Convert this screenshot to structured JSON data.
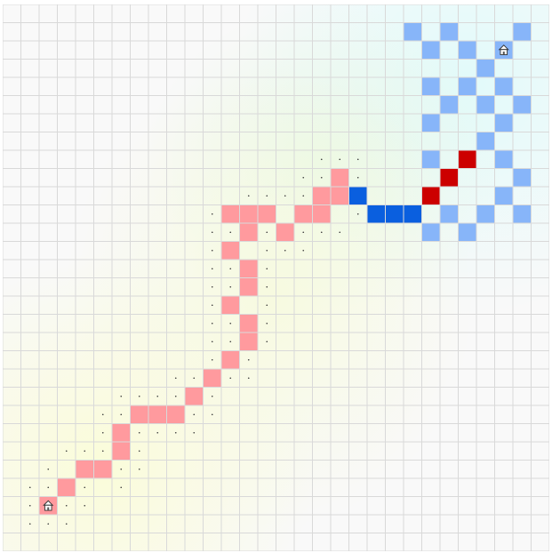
{
  "board": {
    "cols": 30,
    "rows": 30,
    "colors": {
      "grid_line": "#d9d9d9",
      "player_trail": "#ff9a9e",
      "player_head": "#cc0000",
      "enemy_trail": "#87b5f9",
      "enemy_head": "#0a5fdf",
      "marker_dot": "#333333"
    },
    "icons": {
      "home": "home-icon"
    },
    "homes": [
      {
        "owner": "player",
        "col": 2,
        "row": 27
      },
      {
        "owner": "enemy",
        "col": 27,
        "row": 2
      }
    ],
    "player_trail": [
      [
        3,
        26
      ],
      [
        4,
        25
      ],
      [
        5,
        25
      ],
      [
        6,
        24
      ],
      [
        6,
        23
      ],
      [
        7,
        22
      ],
      [
        8,
        22
      ],
      [
        9,
        22
      ],
      [
        10,
        21
      ],
      [
        11,
        20
      ],
      [
        12,
        19
      ],
      [
        13,
        18
      ],
      [
        13,
        17
      ],
      [
        12,
        16
      ],
      [
        13,
        15
      ],
      [
        13,
        14
      ],
      [
        12,
        13
      ],
      [
        13,
        12
      ],
      [
        15,
        12
      ],
      [
        16,
        11
      ],
      [
        17,
        10
      ],
      [
        18,
        10
      ],
      [
        12,
        11
      ],
      [
        13,
        11
      ],
      [
        14,
        11
      ],
      [
        17,
        11
      ],
      [
        18,
        9
      ]
    ],
    "player_head": [
      [
        23,
        10
      ],
      [
        24,
        9
      ],
      [
        25,
        8
      ]
    ],
    "enemy_head": [
      [
        19,
        10
      ],
      [
        20,
        11
      ],
      [
        21,
        11
      ],
      [
        22,
        11
      ]
    ],
    "enemy_trail": [
      [
        22,
        1
      ],
      [
        24,
        1
      ],
      [
        28,
        1
      ],
      [
        23,
        2
      ],
      [
        25,
        2
      ],
      [
        26,
        3
      ],
      [
        23,
        4
      ],
      [
        25,
        4
      ],
      [
        27,
        4
      ],
      [
        24,
        5
      ],
      [
        26,
        5
      ],
      [
        28,
        5
      ],
      [
        23,
        6
      ],
      [
        27,
        6
      ],
      [
        26,
        7
      ],
      [
        23,
        8
      ],
      [
        27,
        8
      ],
      [
        28,
        9
      ],
      [
        27,
        10
      ],
      [
        24,
        11
      ],
      [
        26,
        11
      ],
      [
        28,
        11
      ],
      [
        23,
        12
      ],
      [
        25,
        12
      ]
    ],
    "markers": [
      [
        1,
        26
      ],
      [
        1,
        27
      ],
      [
        1,
        28
      ],
      [
        2,
        26
      ],
      [
        2,
        28
      ],
      [
        3,
        27
      ],
      [
        3,
        28
      ],
      [
        4,
        27
      ],
      [
        2,
        25
      ],
      [
        3,
        24
      ],
      [
        4,
        24
      ],
      [
        5,
        24
      ],
      [
        4,
        26
      ],
      [
        6,
        26
      ],
      [
        6,
        25
      ],
      [
        7,
        25
      ],
      [
        7,
        24
      ],
      [
        7,
        23
      ],
      [
        5,
        23
      ],
      [
        6,
        22
      ],
      [
        7,
        21
      ],
      [
        6,
        21
      ],
      [
        5,
        22
      ],
      [
        8,
        23
      ],
      [
        9,
        23
      ],
      [
        10,
        23
      ],
      [
        8,
        21
      ],
      [
        9,
        21
      ],
      [
        10,
        22
      ],
      [
        11,
        22
      ],
      [
        11,
        21
      ],
      [
        9,
        20
      ],
      [
        10,
        20
      ],
      [
        12,
        20
      ],
      [
        11,
        19
      ],
      [
        11,
        18
      ],
      [
        12,
        18
      ],
      [
        13,
        19
      ],
      [
        13,
        20
      ],
      [
        12,
        17
      ],
      [
        14,
        18
      ],
      [
        14,
        17
      ],
      [
        11,
        17
      ],
      [
        11,
        16
      ],
      [
        11,
        15
      ],
      [
        11,
        14
      ],
      [
        11,
        13
      ],
      [
        12,
        14
      ],
      [
        12,
        15
      ],
      [
        14,
        16
      ],
      [
        14,
        15
      ],
      [
        14,
        14
      ],
      [
        14,
        13
      ],
      [
        11,
        12
      ],
      [
        12,
        12
      ],
      [
        14,
        12
      ],
      [
        15,
        13
      ],
      [
        16,
        13
      ],
      [
        16,
        12
      ],
      [
        13,
        10
      ],
      [
        14,
        10
      ],
      [
        15,
        10
      ],
      [
        16,
        10
      ],
      [
        11,
        11
      ],
      [
        17,
        12
      ],
      [
        18,
        12
      ],
      [
        19,
        11
      ],
      [
        16,
        9
      ],
      [
        17,
        9
      ],
      [
        17,
        8
      ],
      [
        18,
        8
      ],
      [
        19,
        8
      ],
      [
        19,
        9
      ]
    ]
  }
}
